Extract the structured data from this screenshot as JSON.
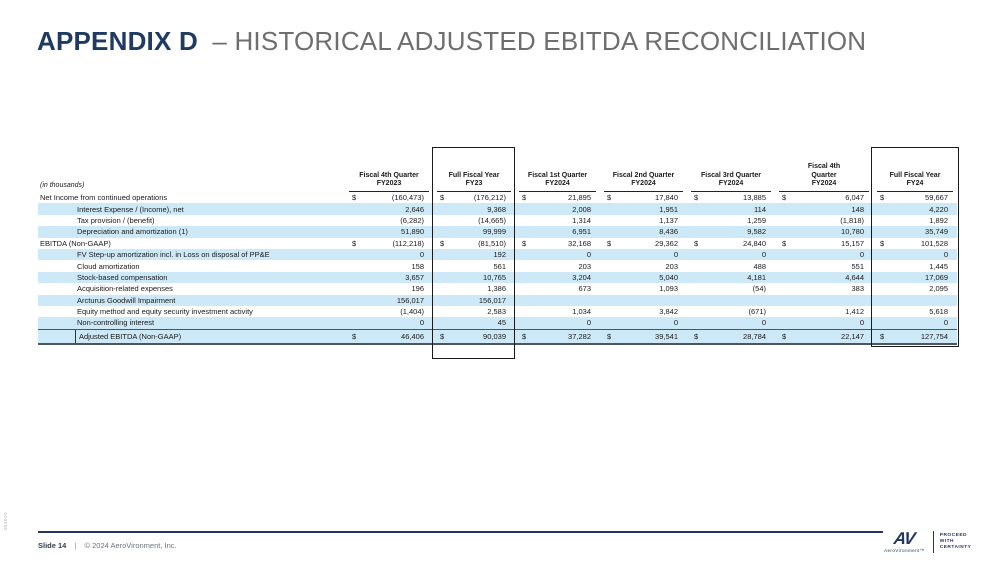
{
  "slide": {
    "title_bold": "APPENDIX D",
    "title_rest": "– HISTORICAL ADJUSTED EBITDA RECONCILIATION",
    "side_code": "053020"
  },
  "table": {
    "unit_note": "(in thousands)",
    "columns": [
      {
        "lines": [
          "Fiscal 4th Quarter",
          "FY2023"
        ],
        "boxed": false
      },
      {
        "lines": [
          "Full Fiscal Year",
          "FY23"
        ],
        "boxed": true
      },
      {
        "lines": [
          "Fiscal 1st Quarter",
          "FY2024"
        ],
        "boxed": false
      },
      {
        "lines": [
          "Fiscal 2nd Quarter",
          "FY2024"
        ],
        "boxed": false
      },
      {
        "lines": [
          "Fiscal 3rd Quarter",
          "FY2024"
        ],
        "boxed": false
      },
      {
        "lines": [
          "Fiscal 4th",
          "Quarter",
          "FY2024"
        ],
        "boxed": false
      },
      {
        "lines": [
          "Full Fiscal Year",
          "FY24"
        ],
        "boxed": true
      }
    ],
    "rows": [
      {
        "label": "Net Income from continued operations",
        "indent": 0,
        "dollar": true,
        "shaded": false,
        "values": [
          "(160,473)",
          "(176,212)",
          "21,895",
          "17,840",
          "13,885",
          "6,047",
          "59,667"
        ]
      },
      {
        "label": "Interest Expense / (Income), net",
        "indent": 1,
        "dollar": false,
        "shaded": true,
        "values": [
          "2,646",
          "9,368",
          "2,008",
          "1,951",
          "114",
          "148",
          "4,220"
        ]
      },
      {
        "label": "Tax provision / (benefit)",
        "indent": 1,
        "dollar": false,
        "shaded": false,
        "values": [
          "(6,282)",
          "(14,665)",
          "1,314",
          "1,137",
          "1,259",
          "(1,818)",
          "1,892"
        ]
      },
      {
        "label": "Depreciation and amortization (1)",
        "indent": 1,
        "dollar": false,
        "shaded": true,
        "values": [
          "51,890",
          "99,999",
          "6,951",
          "8,436",
          "9,582",
          "10,780",
          "35,749"
        ]
      },
      {
        "label": "EBITDA (Non-GAAP)",
        "indent": 0,
        "dollar": true,
        "shaded": false,
        "values": [
          "(112,218)",
          "(81,510)",
          "32,168",
          "29,362",
          "24,840",
          "15,157",
          "101,528"
        ]
      },
      {
        "label": "FV Step-up amortization incl. in Loss on disposal of PP&E",
        "indent": 1,
        "dollar": false,
        "shaded": true,
        "values": [
          "0",
          "192",
          "0",
          "0",
          "0",
          "0",
          "0"
        ]
      },
      {
        "label": "Cloud amortization",
        "indent": 1,
        "dollar": false,
        "shaded": false,
        "values": [
          "158",
          "561",
          "203",
          "203",
          "488",
          "551",
          "1,445"
        ]
      },
      {
        "label": "Stock-based compensation",
        "indent": 1,
        "dollar": false,
        "shaded": true,
        "values": [
          "3,657",
          "10,765",
          "3,204",
          "5,040",
          "4,181",
          "4,644",
          "17,069"
        ]
      },
      {
        "label": "Acquisition-related expenses",
        "indent": 1,
        "dollar": false,
        "shaded": false,
        "values": [
          "196",
          "1,386",
          "673",
          "1,093",
          "(54)",
          "383",
          "2,095"
        ]
      },
      {
        "label": "Arcturus Goodwill Impairment",
        "indent": 1,
        "dollar": false,
        "shaded": true,
        "values": [
          "156,017",
          "156,017",
          "",
          "",
          "",
          "",
          ""
        ]
      },
      {
        "label": "Equity method and equity security investment activity",
        "indent": 1,
        "dollar": false,
        "shaded": false,
        "values": [
          "(1,404)",
          "2,583",
          "1,034",
          "3,842",
          "(671)",
          "1,412",
          "5,618"
        ]
      },
      {
        "label": "Non-controlling interest",
        "indent": 1,
        "dollar": false,
        "shaded": true,
        "values": [
          "0",
          "45",
          "0",
          "0",
          "0",
          "0",
          "0"
        ]
      }
    ],
    "total_row": {
      "label": "Adjusted EBITDA (Non-GAAP)",
      "dollar": true,
      "values": [
        "46,406",
        "90,039",
        "37,282",
        "39,541",
        "28,784",
        "22,147",
        "127,754"
      ]
    }
  },
  "footer": {
    "slide_label": "Slide 14",
    "separator": "|",
    "copyright": "© 2024 AeroVironment, Inc.",
    "logo_text": "AV",
    "logo_sub": "AeroVironment™",
    "tagline_lines": [
      "PROCEED",
      "WITH",
      "CERTAINTY"
    ]
  },
  "colors": {
    "accent_navy": "#1f3a63",
    "title_gray": "#6e6e6e",
    "row_shade_blue": "#cde8f6",
    "total_border_gray": "#4f5560"
  }
}
